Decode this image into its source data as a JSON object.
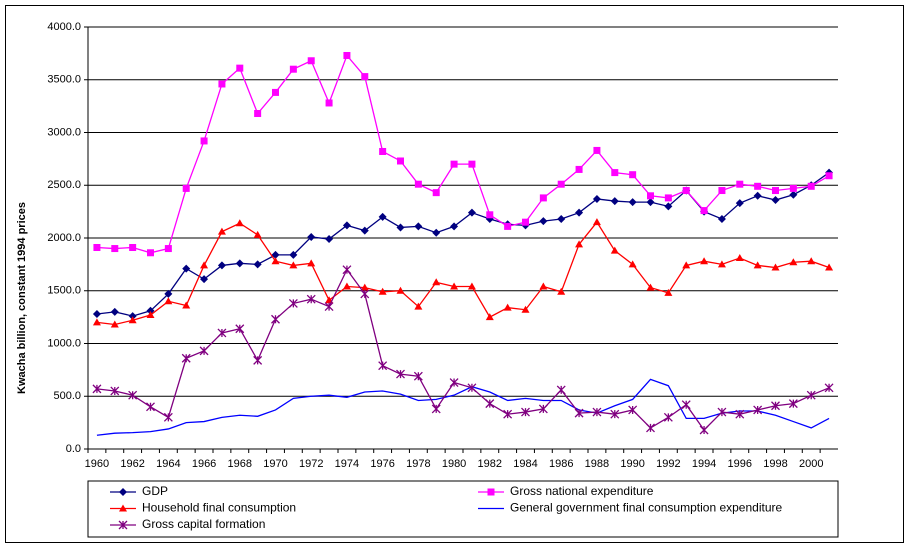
{
  "chart_data": {
    "type": "line",
    "y_label": "Kwacha billion, constant 1994 prices",
    "categories": [
      "1960",
      null,
      "1962",
      null,
      "1964",
      null,
      "1966",
      null,
      "1968",
      null,
      "1970",
      null,
      "1972",
      null,
      "1974",
      null,
      "1976",
      null,
      "1978",
      null,
      "1980",
      null,
      "1982",
      null,
      "1984",
      null,
      "1986",
      null,
      "1988",
      null,
      "1990",
      null,
      "1992",
      null,
      "1994",
      null,
      "1996",
      null,
      "1998",
      null,
      "2000",
      null
    ],
    "ylim": [
      0,
      4000
    ],
    "yticks": [
      {
        "value": 0,
        "label": "0.0"
      },
      {
        "value": 500,
        "label": "500.0"
      },
      {
        "value": 1000,
        "label": "1000.0"
      },
      {
        "value": 1500,
        "label": "1500.0"
      },
      {
        "value": 2000,
        "label": "2000.0"
      },
      {
        "value": 2500,
        "label": "2500.0"
      },
      {
        "value": 3000,
        "label": "3000.0"
      },
      {
        "value": 3500,
        "label": "3500.0"
      },
      {
        "value": 4000,
        "label": "4000.0"
      }
    ],
    "grid": true,
    "legend": "bottom",
    "series": [
      {
        "name": "GDP",
        "color": "#000080",
        "marker": "diamond",
        "values": [
          1280,
          1300,
          1260,
          1310,
          1470,
          1710,
          1610,
          1740,
          1760,
          1750,
          1840,
          1840,
          2010,
          1990,
          2120,
          2070,
          2200,
          2100,
          2110,
          2050,
          2110,
          2240,
          2180,
          2130,
          2120,
          2160,
          2180,
          2240,
          2370,
          2350,
          2340,
          2340,
          2300,
          2450,
          2250,
          2180,
          2330,
          2400,
          2360,
          2410,
          2500,
          2620
        ]
      },
      {
        "name": "Gross national expenditure",
        "color": "#FF00FF",
        "marker": "square",
        "values": [
          1910,
          1900,
          1910,
          1860,
          1900,
          2470,
          2920,
          3460,
          3610,
          3180,
          3380,
          3600,
          3680,
          3280,
          3730,
          3530,
          2820,
          2730,
          2510,
          2430,
          2700,
          2700,
          2220,
          2110,
          2150,
          2380,
          2510,
          2650,
          2830,
          2620,
          2600,
          2400,
          2380,
          2450,
          2260,
          2450,
          2510,
          2490,
          2450,
          2470,
          2490,
          2590
        ]
      },
      {
        "name": "Household final consumption",
        "color": "#FF0000",
        "marker": "triangle",
        "values": [
          1200,
          1180,
          1220,
          1270,
          1400,
          1360,
          1740,
          2060,
          2140,
          2030,
          1780,
          1740,
          1760,
          1410,
          1540,
          1530,
          1490,
          1500,
          1350,
          1580,
          1540,
          1540,
          1250,
          1340,
          1320,
          1540,
          1490,
          1940,
          2150,
          1880,
          1750,
          1530,
          1480,
          1740,
          1780,
          1750,
          1810,
          1740,
          1720,
          1770,
          1780,
          1720
        ]
      },
      {
        "name": "General government final consumption expenditure",
        "color": "#0000FF",
        "marker": "none",
        "values": [
          130,
          150,
          155,
          165,
          190,
          250,
          260,
          300,
          320,
          310,
          370,
          480,
          500,
          510,
          490,
          540,
          550,
          520,
          460,
          470,
          510,
          590,
          540,
          460,
          480,
          460,
          460,
          370,
          340,
          410,
          470,
          660,
          600,
          290,
          290,
          340,
          360,
          360,
          320,
          260,
          200,
          290
        ]
      },
      {
        "name": "Gross capital formation",
        "color": "#800080",
        "marker": "star",
        "values": [
          570,
          550,
          510,
          400,
          300,
          860,
          930,
          1100,
          1140,
          840,
          1230,
          1380,
          1420,
          1350,
          1700,
          1470,
          790,
          710,
          690,
          380,
          630,
          580,
          430,
          330,
          350,
          380,
          560,
          340,
          350,
          330,
          370,
          200,
          300,
          420,
          180,
          350,
          330,
          370,
          410,
          430,
          510,
          580
        ]
      }
    ]
  }
}
